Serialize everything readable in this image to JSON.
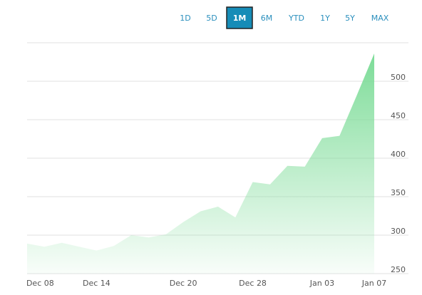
{
  "range_buttons": [
    "1D",
    "5D",
    "1M",
    "6M",
    "YTD",
    "1Y",
    "5Y",
    "MAX"
  ],
  "selected_range": "1M",
  "chart_data": {
    "type": "area",
    "categories": [
      null,
      "Dec 08",
      null,
      null,
      "Dec 14",
      null,
      null,
      null,
      null,
      "Dec 20",
      null,
      null,
      null,
      "Dec 28",
      null,
      null,
      null,
      "Jan 03",
      null,
      null,
      "Jan 07"
    ],
    "series": [
      {
        "color": "#7ddc98",
        "values": [
          289,
          285,
          290,
          285,
          280,
          286,
          300,
          297,
          301,
          317,
          331,
          337,
          323,
          369,
          366,
          390,
          389,
          426,
          429,
          482,
          536
        ]
      }
    ],
    "ylim": [
      250,
      550
    ],
    "yticks": [
      250,
      300,
      350,
      400,
      450,
      500
    ],
    "grid": true
  }
}
